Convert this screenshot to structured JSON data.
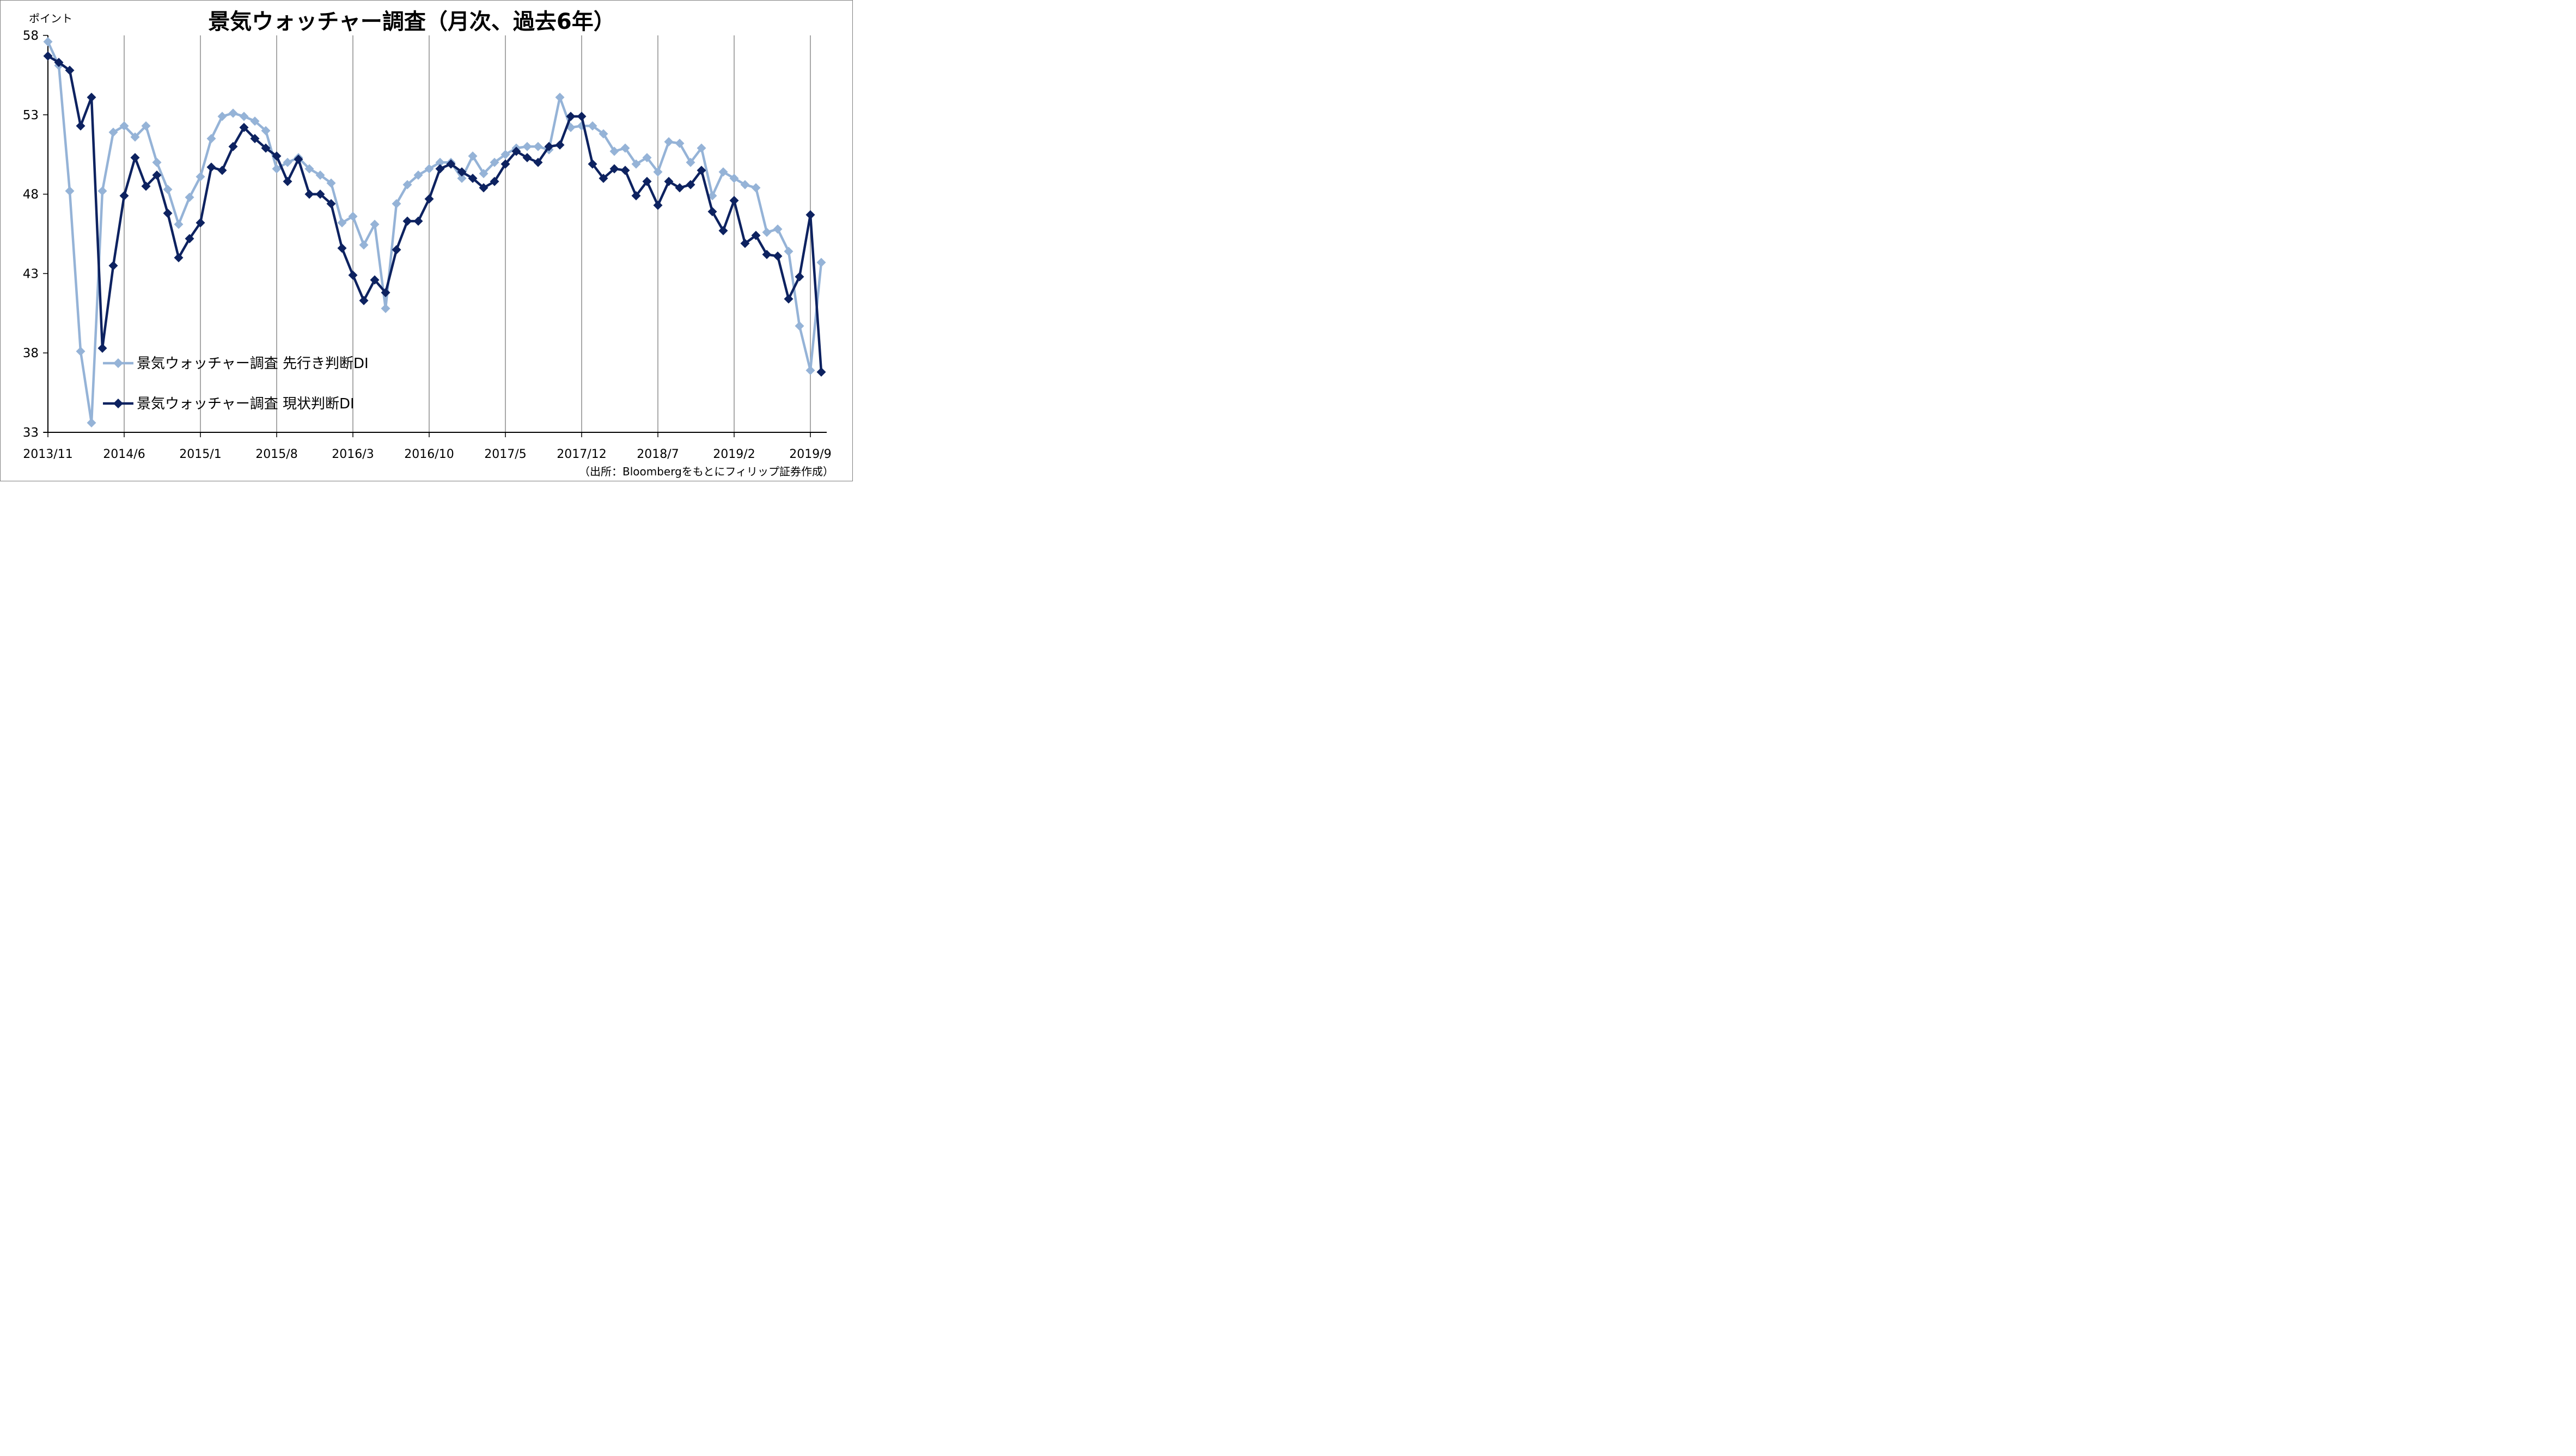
{
  "chart_data": {
    "type": "line",
    "title": "景気ウォッチャー調査（月次、過去6年）",
    "ylabel": "ポイント",
    "ylim": [
      33,
      58
    ],
    "yticks": [
      33,
      38,
      43,
      48,
      53,
      58
    ],
    "xtick_labels": [
      "2013/11",
      "2014/6",
      "2015/1",
      "2015/8",
      "2016/3",
      "2016/10",
      "2017/5",
      "2017/12",
      "2018/7",
      "2019/2",
      "2019/9"
    ],
    "x": [
      "2013/11",
      "2013/12",
      "2014/1",
      "2014/2",
      "2014/3",
      "2014/4",
      "2014/5",
      "2014/6",
      "2014/7",
      "2014/8",
      "2014/9",
      "2014/10",
      "2014/11",
      "2014/12",
      "2015/1",
      "2015/2",
      "2015/3",
      "2015/4",
      "2015/5",
      "2015/6",
      "2015/7",
      "2015/8",
      "2015/9",
      "2015/10",
      "2015/11",
      "2015/12",
      "2016/1",
      "2016/2",
      "2016/3",
      "2016/4",
      "2016/5",
      "2016/6",
      "2016/7",
      "2016/8",
      "2016/9",
      "2016/10",
      "2016/11",
      "2016/12",
      "2017/1",
      "2017/2",
      "2017/3",
      "2017/4",
      "2017/5",
      "2017/6",
      "2017/7",
      "2017/8",
      "2017/9",
      "2017/10",
      "2017/11",
      "2017/12",
      "2018/1",
      "2018/2",
      "2018/3",
      "2018/4",
      "2018/5",
      "2018/6",
      "2018/7",
      "2018/8",
      "2018/9",
      "2018/10",
      "2018/11",
      "2018/12",
      "2019/1",
      "2019/2",
      "2019/3",
      "2019/4",
      "2019/5",
      "2019/6",
      "2019/7",
      "2019/8",
      "2019/9",
      "2019/10"
    ],
    "series": [
      {
        "name": "景気ウォッチャー調査 先行き判断DI",
        "color": "#95b3d7",
        "values": [
          57.6,
          56.1,
          48.2,
          38.1,
          33.6,
          48.2,
          51.9,
          52.3,
          51.6,
          52.3,
          50.0,
          48.3,
          46.1,
          47.8,
          49.1,
          51.5,
          52.9,
          53.1,
          52.9,
          52.6,
          52.0,
          49.6,
          50.0,
          50.3,
          49.6,
          49.2,
          48.7,
          46.2,
          46.6,
          44.8,
          46.1,
          40.8,
          47.4,
          48.6,
          49.2,
          49.6,
          50.0,
          50.0,
          49.0,
          50.4,
          49.3,
          50.0,
          50.5,
          50.9,
          51.0,
          51.0,
          50.8,
          54.1,
          52.2,
          52.3,
          52.3,
          51.8,
          50.7,
          50.9,
          49.9,
          50.3,
          49.4,
          51.3,
          51.2,
          50.0,
          50.9,
          47.9,
          49.4,
          49.0,
          48.6,
          48.4,
          45.6,
          45.8,
          44.4,
          39.7,
          36.9,
          43.7
        ]
      },
      {
        "name": "景気ウォッチャー調査 現状判断DI",
        "color": "#0d2260",
        "values": [
          56.7,
          56.3,
          55.8,
          52.3,
          54.1,
          38.3,
          43.5,
          47.9,
          50.3,
          48.5,
          49.2,
          46.8,
          44.0,
          45.2,
          46.2,
          49.7,
          49.5,
          51.0,
          52.2,
          51.5,
          50.9,
          50.4,
          48.8,
          50.2,
          48.0,
          48.0,
          47.4,
          44.6,
          42.9,
          41.3,
          42.6,
          41.8,
          44.5,
          46.3,
          46.3,
          47.7,
          49.6,
          49.9,
          49.4,
          49.0,
          48.4,
          48.8,
          49.9,
          50.7,
          50.3,
          50.0,
          51.0,
          51.1,
          52.9,
          52.9,
          49.9,
          49.0,
          49.6,
          49.5,
          47.9,
          48.8,
          47.3,
          48.8,
          48.4,
          48.6,
          49.5,
          46.9,
          45.7,
          47.6,
          44.9,
          45.4,
          44.2,
          44.1,
          41.4,
          42.8,
          46.7,
          36.8
        ]
      }
    ],
    "grid": "vertical",
    "legend_position": "lower-left"
  },
  "unit_label": "ポイント",
  "source": "（出所：Bloombergをもとにフィリップ証券作成）"
}
